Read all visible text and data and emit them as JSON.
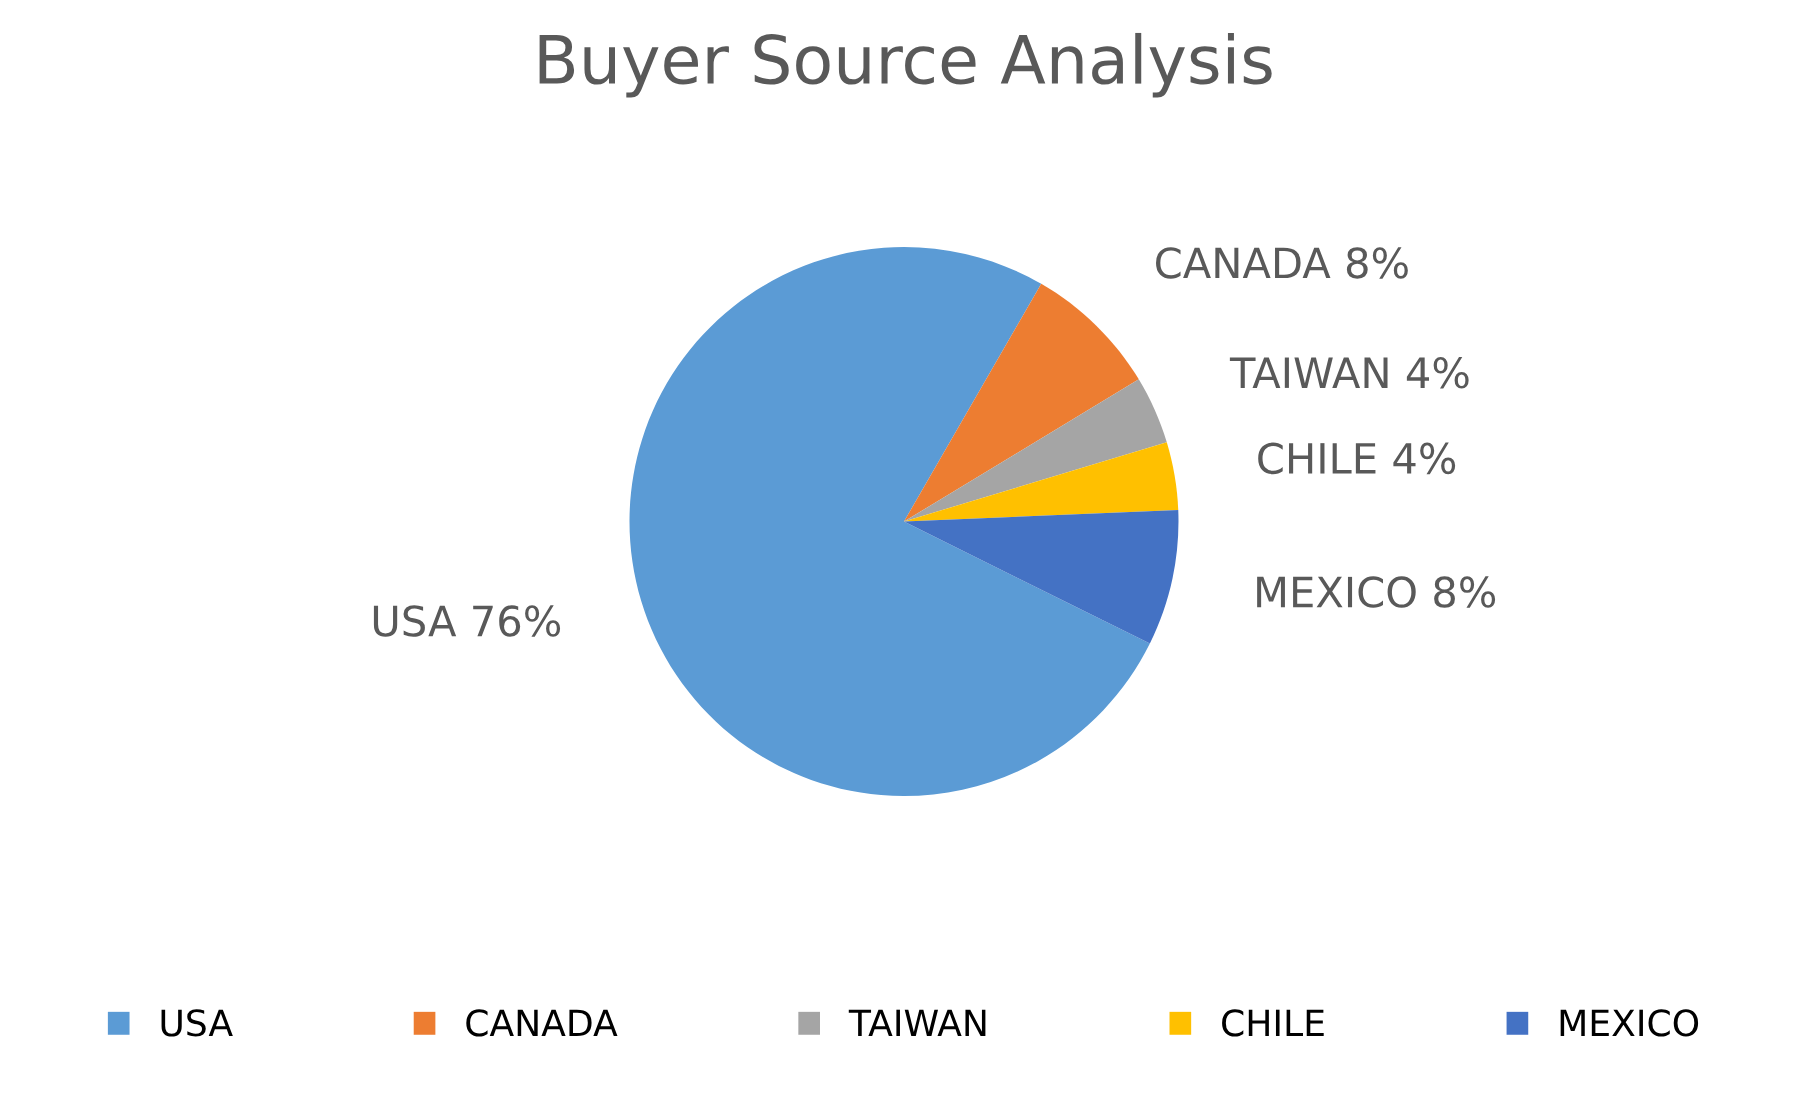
{
  "chart_data": {
    "type": "pie",
    "title": "Buyer Source Analysis",
    "categories": [
      "USA",
      "CANADA",
      "TAIWAN",
      "CHILE",
      "MEXICO"
    ],
    "values": [
      76,
      8,
      4,
      4,
      8
    ],
    "colors": [
      "#5b9bd5",
      "#ed7d31",
      "#a5a5a5",
      "#ffc000",
      "#4472c4"
    ],
    "value_labels": [
      "USA 76%",
      "CANADA 8%",
      "TAIWAN 4%",
      "CHILE 4%",
      "MEXICO 8%"
    ],
    "legend": "bottom"
  }
}
